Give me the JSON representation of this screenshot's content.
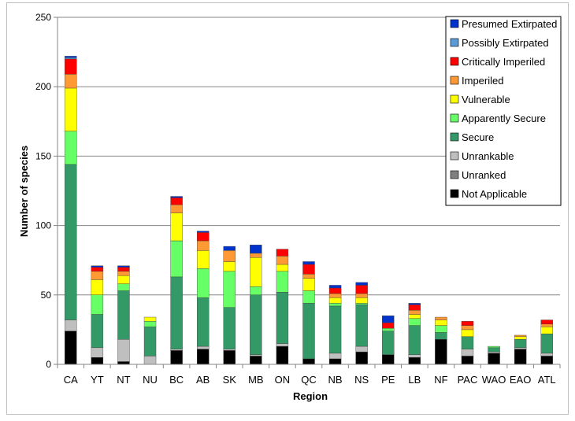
{
  "chart_data": {
    "type": "bar",
    "stacked": true,
    "xlabel": "Region",
    "ylabel": "Number of species",
    "ylim": [
      0,
      250
    ],
    "yticks": [
      0,
      50,
      100,
      150,
      200,
      250
    ],
    "grid": true,
    "legend_position": "top-right",
    "categories": [
      "CA",
      "YT",
      "NT",
      "NU",
      "BC",
      "AB",
      "SK",
      "MB",
      "ON",
      "QC",
      "NB",
      "NS",
      "PE",
      "LB",
      "NF",
      "PAC",
      "WAO",
      "EAO",
      "ATL"
    ],
    "series": [
      {
        "name": "Not Applicable",
        "color": "#000000",
        "values": [
          24,
          5,
          2,
          0,
          10,
          11,
          10,
          6,
          13,
          4,
          4,
          9,
          7,
          5,
          18,
          6,
          8,
          11,
          6
        ]
      },
      {
        "name": "Unranked",
        "color": "#7f7f7f",
        "values": [
          0,
          0,
          0,
          0,
          0,
          0,
          0,
          0,
          0,
          0,
          0,
          0,
          0,
          0,
          0,
          0,
          0,
          0,
          0
        ]
      },
      {
        "name": "Unrankable",
        "color": "#bfbfbf",
        "values": [
          8,
          7,
          16,
          6,
          1,
          2,
          1,
          1,
          2,
          0,
          4,
          4,
          0,
          2,
          0,
          5,
          1,
          1,
          2
        ]
      },
      {
        "name": "Secure",
        "color": "#339966",
        "values": [
          112,
          24,
          35,
          21,
          52,
          35,
          30,
          43,
          37,
          40,
          34,
          30,
          17,
          21,
          5,
          9,
          3,
          6,
          14
        ]
      },
      {
        "name": "Apparently Secure",
        "color": "#66ff66",
        "values": [
          24,
          14,
          5,
          4,
          26,
          21,
          26,
          6,
          15,
          9,
          2,
          1,
          2,
          5,
          5,
          0,
          1,
          0,
          0
        ]
      },
      {
        "name": "Vulnerable",
        "color": "#ffff00",
        "values": [
          31,
          11,
          6,
          3,
          20,
          13,
          7,
          21,
          5,
          9,
          4,
          4,
          0,
          3,
          4,
          5,
          0,
          2,
          5
        ]
      },
      {
        "name": "Imperiled",
        "color": "#ff9933",
        "values": [
          10,
          6,
          3,
          0,
          6,
          7,
          8,
          3,
          6,
          3,
          3,
          3,
          0,
          3,
          2,
          3,
          0,
          1,
          2
        ]
      },
      {
        "name": "Critically Imperiled",
        "color": "#ff0000",
        "values": [
          11,
          3,
          3,
          0,
          5,
          6,
          0,
          0,
          5,
          7,
          4,
          6,
          4,
          4,
          0,
          3,
          0,
          0,
          3
        ]
      },
      {
        "name": "Possibly Extirpated",
        "color": "#5b9bd5",
        "values": [
          1,
          0,
          0,
          0,
          0,
          0,
          0,
          0,
          0,
          0,
          0,
          0,
          0,
          0,
          0,
          0,
          0,
          0,
          0
        ]
      },
      {
        "name": "Presumed Extirpated",
        "color": "#0033cc",
        "values": [
          1,
          1,
          1,
          0,
          1,
          1,
          3,
          6,
          0,
          2,
          2,
          2,
          5,
          1,
          0,
          0,
          0,
          0,
          0
        ]
      }
    ],
    "legend_order": [
      "Presumed Extirpated",
      "Possibly Extirpated",
      "Critically Imperiled",
      "Imperiled",
      "Vulnerable",
      "Apparently Secure",
      "Secure",
      "Unrankable",
      "Unranked",
      "Not Applicable"
    ]
  }
}
